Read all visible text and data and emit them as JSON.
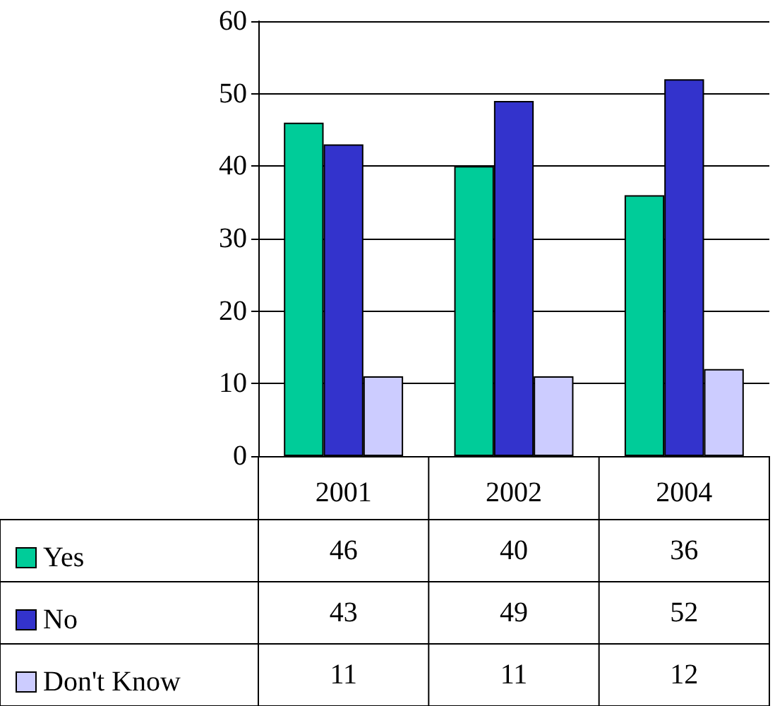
{
  "chart_data": {
    "type": "bar",
    "categories": [
      "2001",
      "2002",
      "2004"
    ],
    "series": [
      {
        "name": "Yes",
        "color": "#00cc99",
        "values": [
          46,
          40,
          36
        ]
      },
      {
        "name": "No",
        "color": "#3333cc",
        "values": [
          43,
          49,
          52
        ]
      },
      {
        "name": "Don't Know",
        "color": "#ccccff",
        "values": [
          11,
          11,
          12
        ]
      }
    ],
    "ylim": [
      0,
      60
    ],
    "yticks": [
      0,
      10,
      20,
      30,
      40,
      50,
      60
    ],
    "grid": "y",
    "legend": "bottom left",
    "data_labels": true
  }
}
